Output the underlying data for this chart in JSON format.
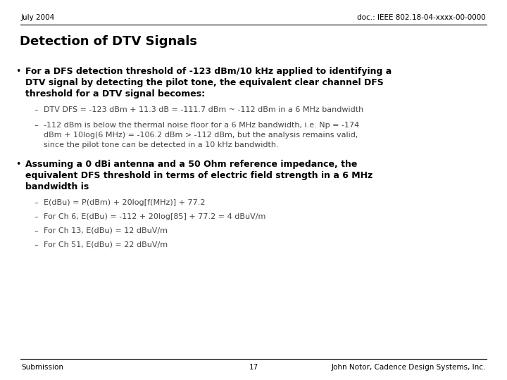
{
  "header_left": "July 2004",
  "header_right": "doc.: IEEE 802.18-04-xxxx-00-0000",
  "title": "Detection of DTV Signals",
  "bullet1_line1": "For a DFS detection threshold of -123 dBm/10 kHz applied to identifying a",
  "bullet1_line2": "DTV signal by detecting the pilot tone, the equivalent clear channel DFS",
  "bullet1_line3": "threshold for a DTV signal becomes:",
  "sub1_1": "DTV DFS = -123 dBm + 11.3 dB = -111.7 dBm ~ -112 dBm in a 6 MHz bandwidth",
  "sub1_2_line1": "-112 dBm is below the thermal noise floor for a 6 MHz bandwidth, i.e. Np = -174",
  "sub1_2_line2": "dBm + 10log(6 MHz) = -106.2 dBm > -112 dBm, but the analysis remains valid,",
  "sub1_2_line3": "since the pilot tone can be detected in a 10 kHz bandwidth.",
  "bullet2_line1": "Assuming a 0 dBi antenna and a 50 Ohm reference impedance, the",
  "bullet2_line2": "equivalent DFS threshold in terms of electric field strength in a 6 MHz",
  "bullet2_line3": "bandwidth is",
  "sub2_1": "E(dBu) = P(dBm) + 20log[f(MHz)] + 77.2",
  "sub2_2": "For Ch 6, E(dBu) = -112 + 20log[85] + 77.2 = 4 dBuV/m",
  "sub2_3": "For Ch 13, E(dBu) = 12 dBuV/m",
  "sub2_4": "For Ch 51, E(dBu) = 22 dBuV/m",
  "footer_left": "Submission",
  "footer_center": "17",
  "footer_right": "John Notor, Cadence Design Systems, Inc.",
  "bg_color": "#ffffff",
  "text_color": "#000000",
  "gray_color": "#444444"
}
